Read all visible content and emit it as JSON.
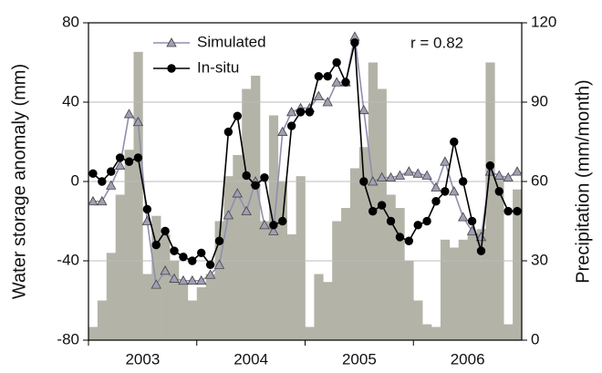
{
  "chart_data": {
    "type": "combo",
    "annotation": "r = 0.82",
    "y_label": "Water storage anomaly (mm)",
    "y2_label": "Precipitation (mm/month)",
    "categories": [
      null,
      null,
      null,
      null,
      null,
      null,
      "2003",
      null,
      null,
      null,
      null,
      null,
      null,
      null,
      null,
      null,
      null,
      null,
      "2004",
      null,
      null,
      null,
      null,
      null,
      null,
      null,
      null,
      null,
      null,
      null,
      "2005",
      null,
      null,
      null,
      null,
      null,
      null,
      null,
      null,
      null,
      null,
      null,
      "2006",
      null,
      null,
      null,
      null,
      null
    ],
    "ylim": [
      -80,
      80
    ],
    "yticks": [
      -80,
      -40,
      0,
      40,
      80
    ],
    "y2lim": [
      0,
      120
    ],
    "y2ticks": [
      0,
      30,
      60,
      90,
      120
    ],
    "grid": true,
    "legend": "upper left",
    "series": [
      {
        "name": "Precipitation",
        "type": "bar",
        "axis": "y2",
        "color": "#b3b3a8",
        "values": [
          5,
          15,
          33,
          55,
          72,
          109,
          25,
          47,
          40,
          30,
          22,
          15,
          20,
          25,
          45,
          62,
          70,
          95,
          100,
          45,
          85,
          60,
          40,
          62,
          5,
          25,
          22,
          45,
          50,
          65,
          73,
          105,
          95,
          55,
          50,
          30,
          15,
          6,
          5,
          38,
          35,
          38,
          40,
          42,
          105,
          62,
          6,
          57
        ]
      },
      {
        "name": "Simulated",
        "type": "line",
        "marker": "triangle",
        "color": "#8f8fb0",
        "values": [
          -10,
          -10,
          -2,
          8,
          34,
          30,
          -20,
          -52,
          -45,
          -49,
          -50,
          -50,
          -50,
          -47,
          -42,
          -17,
          -6,
          -15,
          0,
          -22,
          -25,
          25,
          35,
          37,
          37,
          43,
          40,
          50,
          50,
          73,
          36,
          0,
          2,
          2,
          3,
          5,
          4,
          3,
          -3,
          10,
          -5,
          -18,
          -25,
          -28,
          5,
          3,
          2,
          5
        ]
      },
      {
        "name": "In-situ",
        "type": "line",
        "marker": "circle",
        "color": "#000000",
        "values": [
          4,
          0,
          5,
          12,
          10,
          12,
          -14,
          -32,
          -25,
          -35,
          -38,
          -40,
          -36,
          -42,
          -30,
          25,
          33,
          3,
          -2,
          2,
          -22,
          -20,
          28,
          35,
          35,
          53,
          53,
          60,
          50,
          70,
          0,
          -15,
          -12,
          -20,
          -28,
          -30,
          -22,
          -20,
          -10,
          -5,
          20,
          0,
          -20,
          -35,
          8,
          -5,
          -15,
          -15
        ]
      }
    ]
  }
}
